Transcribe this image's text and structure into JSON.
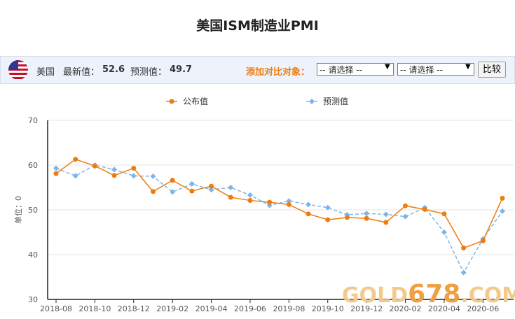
{
  "header": {
    "title": "美国ISM制造业PMI"
  },
  "toolbar": {
    "country": "美国",
    "latest_label": "最新值：",
    "latest": 52.6,
    "forecast_label": "预测值：",
    "forecast": 49.7,
    "compare_label": "添加对比对象：",
    "selects": [
      "-- 请选择 --",
      "-- 请选择 --"
    ],
    "button": "比较"
  },
  "chart_data": {
    "type": "line",
    "categories": [
      "2018-08",
      null,
      "2018-10",
      null,
      "2018-12",
      null,
      "2019-02",
      null,
      "2019-04",
      null,
      "2019-06",
      null,
      "2019-08",
      null,
      "2019-10",
      null,
      "2019-12",
      null,
      "2020-02",
      null,
      "2020-04",
      null,
      "2020-06",
      null
    ],
    "series": [
      {
        "name": "公布值",
        "color": "#f07c0f",
        "dashed": false,
        "marker": "circle",
        "values": [
          58.1,
          61.3,
          59.8,
          57.7,
          59.3,
          54.1,
          56.6,
          54.2,
          55.3,
          52.8,
          52.1,
          51.7,
          51.2,
          49.1,
          47.8,
          48.3,
          48.1,
          47.2,
          50.9,
          50.1,
          49.1,
          41.5,
          43.1,
          52.6
        ]
      },
      {
        "name": "预测值",
        "color": "#7cb5ec",
        "dashed": true,
        "marker": "diamond",
        "values": [
          59.3,
          57.6,
          60.0,
          59.0,
          57.6,
          57.5,
          54.0,
          55.8,
          54.5,
          55.0,
          53.3,
          51.0,
          52.0,
          51.2,
          50.5,
          48.9,
          49.2,
          49.0,
          48.5,
          50.5,
          45.0,
          36.0,
          43.5,
          49.7
        ]
      }
    ],
    "ylim": [
      30,
      70
    ],
    "yticks": [
      30,
      40,
      50,
      60,
      70
    ],
    "y_label": "单位：0",
    "grid": true
  },
  "watermark": [
    "GOLD",
    "678",
    ".COM"
  ]
}
